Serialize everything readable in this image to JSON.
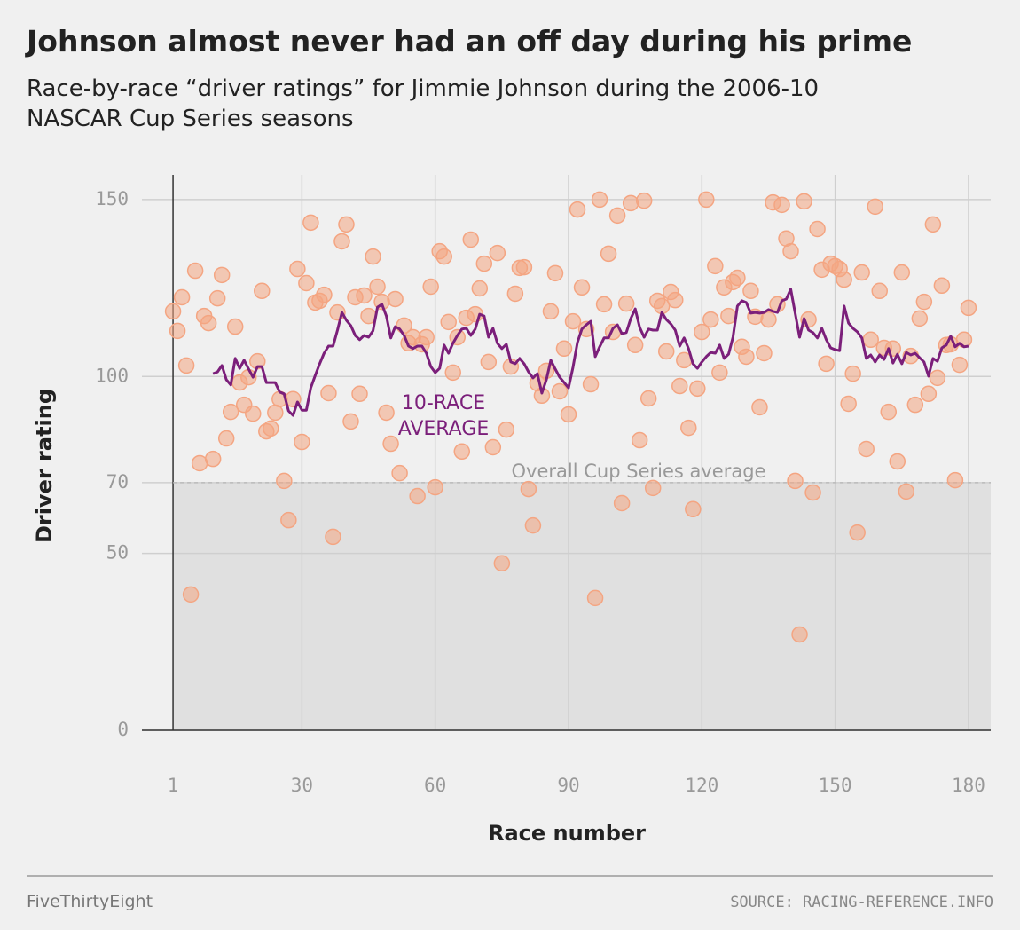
{
  "chart_data": {
    "type": "scatter",
    "title": "Johnson almost never had an off day during his prime",
    "subtitle": [
      "Race-by-race “driver ratings” for Jimmie Johnson during the 2006-10",
      "NASCAR Cup Series seasons"
    ],
    "x_label": "Race number",
    "y_label": "Driver rating",
    "xlim": [
      -6,
      185
    ],
    "ylim": [
      0,
      157
    ],
    "xticks": [
      1,
      30,
      60,
      90,
      120,
      150,
      180
    ],
    "yticks": [
      0,
      50,
      70,
      100,
      150
    ],
    "grid": true,
    "reference_line": {
      "value": 70,
      "label": "Overall Cup Series average"
    },
    "x": [
      1,
      2,
      3,
      4,
      5,
      6,
      7,
      8,
      9,
      10,
      11,
      12,
      13,
      14,
      15,
      16,
      17,
      18,
      19,
      20,
      21,
      22,
      23,
      24,
      25,
      26,
      27,
      28,
      29,
      30,
      31,
      32,
      33,
      34,
      35,
      36,
      37,
      38,
      39,
      40,
      41,
      42,
      43,
      44,
      45,
      46,
      47,
      48,
      49,
      50,
      51,
      52,
      53,
      54,
      55,
      56,
      57,
      58,
      59,
      60,
      61,
      62,
      63,
      64,
      65,
      66,
      67,
      68,
      69,
      70,
      71,
      72,
      73,
      74,
      75,
      76,
      77,
      78,
      79,
      80,
      81,
      82,
      83,
      84,
      85,
      86,
      87,
      88,
      89,
      90,
      91,
      92,
      93,
      94,
      95,
      96,
      97,
      98,
      99,
      100,
      101,
      102,
      103,
      104,
      105,
      106,
      107,
      108,
      109,
      110,
      111,
      112,
      113,
      114,
      115,
      116,
      117,
      118,
      119,
      120,
      121,
      122,
      123,
      124,
      125,
      126,
      127,
      128,
      129,
      130,
      131,
      132,
      133,
      134,
      135,
      136,
      137,
      138,
      139,
      140,
      141,
      142,
      143,
      144,
      145,
      146,
      147,
      148,
      149,
      150,
      151,
      152,
      153,
      154,
      155,
      156,
      157,
      158,
      159,
      160,
      161,
      162,
      163,
      164,
      165,
      166,
      167,
      168,
      169,
      170,
      171,
      172,
      173,
      174,
      175,
      176,
      177,
      178,
      179,
      180
    ],
    "series": [
      {
        "type": "scatter",
        "color": "#f4a582",
        "values": [
          118.4,
          112.9,
          122.4,
          103.1,
          38.4,
          129.9,
          75.5,
          117.1,
          115.1,
          76.7,
          122.1,
          128.7,
          82.5,
          90.0,
          114.1,
          98.3,
          92.0,
          99.8,
          89.5,
          104.3,
          124.2,
          84.5,
          85.3,
          89.8,
          93.6,
          70.5,
          59.4,
          93.6,
          130.4,
          81.5,
          126.4,
          143.5,
          120.9,
          121.4,
          123.1,
          95.3,
          54.7,
          118.1,
          138.2,
          143.0,
          87.3,
          122.4,
          95.1,
          122.9,
          117.1,
          133.9,
          125.4,
          121.1,
          89.8,
          81.0,
          121.9,
          72.7,
          114.4,
          109.4,
          111.1,
          66.2,
          109.1,
          111.1,
          125.4,
          68.7,
          135.4,
          133.9,
          115.4,
          101.1,
          111.1,
          78.8,
          116.6,
          138.7,
          117.6,
          124.9,
          131.9,
          104.1,
          80.0,
          134.9,
          47.2,
          85.0,
          102.8,
          123.4,
          130.7,
          130.9,
          68.2,
          57.9,
          98.1,
          94.6,
          101.6,
          118.4,
          129.2,
          95.8,
          107.9,
          89.3,
          115.6,
          147.2,
          125.2,
          113.4,
          97.8,
          37.4,
          150.0,
          120.4,
          134.7,
          112.6,
          145.5,
          64.2,
          120.6,
          149.0,
          108.9,
          82.0,
          149.7,
          93.8,
          68.5,
          121.4,
          119.9,
          107.1,
          123.9,
          121.6,
          97.3,
          104.6,
          85.5,
          62.5,
          96.6,
          112.6,
          150.0,
          116.1,
          131.2,
          101.1,
          125.2,
          117.1,
          126.7,
          127.9,
          108.4,
          105.6,
          124.2,
          116.9,
          91.3,
          106.6,
          116.1,
          149.2,
          120.4,
          148.5,
          139.0,
          135.4,
          70.5,
          27.1,
          149.5,
          116.1,
          67.2,
          141.7,
          130.2,
          103.6,
          131.9,
          131.2,
          130.4,
          127.4,
          92.3,
          100.8,
          55.9,
          129.4,
          79.5,
          110.4,
          148.0,
          124.2,
          108.1,
          90.0,
          107.9,
          76.0,
          129.4,
          67.5,
          105.8,
          92.0,
          116.4,
          121.1,
          95.1,
          143.0,
          99.6,
          125.7,
          108.9,
          109.1,
          70.7,
          103.3,
          110.4,
          119.4
        ]
      },
      {
        "type": "line",
        "color": "#7b1f7a",
        "label": [
          "10-RACE",
          "AVERAGE"
        ],
        "values": [
          null,
          null,
          null,
          null,
          null,
          null,
          null,
          null,
          null,
          100.8,
          101.3,
          103.1,
          99.1,
          97.6,
          105.1,
          102.3,
          104.6,
          102.1,
          99.8,
          102.8,
          102.8,
          98.3,
          98.3,
          98.3,
          95.6,
          95.1,
          90.3,
          89.0,
          92.8,
          90.5,
          90.5,
          96.8,
          100.3,
          103.6,
          106.6,
          108.6,
          108.6,
          113.1,
          118.1,
          115.9,
          114.4,
          111.6,
          110.4,
          111.6,
          111.1,
          112.9,
          119.6,
          120.4,
          117.1,
          110.9,
          114.1,
          113.4,
          111.6,
          108.6,
          107.9,
          108.6,
          108.6,
          106.6,
          102.8,
          101.1,
          102.3,
          108.9,
          106.6,
          109.4,
          111.6,
          113.4,
          113.6,
          111.6,
          113.4,
          117.6,
          117.1,
          111.1,
          113.6,
          109.4,
          107.9,
          109.1,
          104.1,
          103.6,
          105.1,
          103.6,
          101.3,
          99.6,
          100.8,
          95.3,
          99.1,
          104.6,
          102.1,
          99.8,
          98.3,
          96.8,
          102.6,
          109.6,
          113.4,
          114.6,
          115.6,
          105.6,
          108.4,
          110.9,
          110.9,
          113.6,
          114.6,
          112.1,
          112.4,
          116.4,
          119.1,
          113.9,
          111.1,
          113.4,
          113.1,
          113.1,
          118.1,
          116.1,
          114.9,
          113.1,
          108.6,
          110.9,
          107.9,
          103.6,
          102.3,
          104.1,
          105.6,
          106.8,
          106.6,
          108.9,
          105.1,
          106.3,
          111.1,
          119.9,
          121.4,
          120.9,
          117.9,
          118.1,
          117.9,
          118.1,
          118.9,
          118.4,
          118.1,
          121.4,
          121.9,
          124.7,
          117.9,
          111.1,
          116.4,
          113.1,
          112.4,
          110.9,
          113.6,
          110.4,
          108.1,
          107.6,
          107.3,
          119.9,
          115.1,
          113.6,
          112.6,
          110.9,
          105.1,
          106.1,
          104.1,
          106.1,
          104.8,
          107.9,
          103.8,
          106.3,
          103.6,
          106.8,
          106.1,
          106.6,
          105.3,
          104.1,
          100.1,
          105.1,
          104.3,
          108.1,
          108.9,
          111.4,
          108.4,
          109.4,
          108.4,
          108.6
        ]
      }
    ],
    "footer_left": "FiveThirtyEight",
    "footer_right": "SOURCE: RACING-REFERENCE.INFO"
  }
}
